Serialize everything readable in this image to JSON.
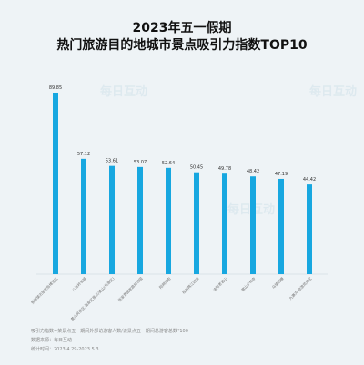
{
  "title_line1": "2023年五一假期",
  "title_line2": "热门旅游目的地城市景点吸引力指数TOP10",
  "watermark": "每日互动",
  "notes": [
    "吸引力指数=某景点五一期间外部访游客人数/该景点五一期间总游客总数*100",
    "数据来源：每日互动",
    "统计时间：2023.4.29-2023.5.3"
  ],
  "colors": {
    "bar": "#17a7e0"
  },
  "chart_data": {
    "type": "bar",
    "categories": [
      "景德镇古窑民俗博览区",
      "八达岭长城",
      "黄山风景区·温泉区景点/黄山(风景区)",
      "张家界国家森林公园",
      "阳朔西街",
      "桂林两江四湖",
      "洛阳老君山",
      "嵩山少林寺",
      "乌镇西栅",
      "九寨沟 旅游风景区"
    ],
    "values": [
      89.85,
      57.12,
      53.61,
      53.07,
      52.64,
      50.45,
      49.78,
      48.42,
      47.19,
      44.42
    ],
    "value_labels": [
      "89.85",
      "57.12",
      "53.61",
      "53.07",
      "52.64",
      "50.45",
      "49.78",
      "48.42",
      "47.19",
      "44.42"
    ],
    "ylim": [
      0,
      100
    ]
  }
}
